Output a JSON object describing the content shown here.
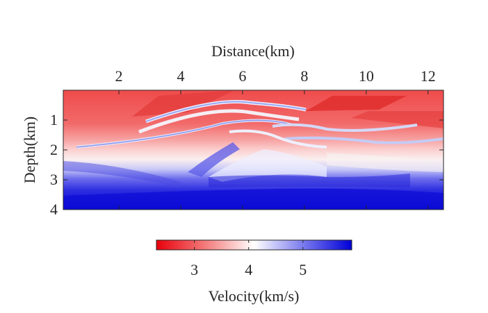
{
  "chart_data": {
    "type": "heatmap",
    "title": "",
    "xlabel": "Distance(km)",
    "ylabel": "Depth(km)",
    "xlim": [
      0.2,
      12.5
    ],
    "ylim": [
      0,
      4
    ],
    "y_axis_reversed": true,
    "x_axis_position": "top",
    "xticks": [
      2,
      4,
      6,
      8,
      10,
      12
    ],
    "xtick_labels": [
      "2",
      "4",
      "6",
      "8",
      "10",
      "12"
    ],
    "yticks": [
      1,
      2,
      3,
      4
    ],
    "ytick_labels": [
      "1",
      "2",
      "3",
      "4"
    ],
    "colorbar": {
      "label": "Velocity(km/s)",
      "orientation": "horizontal",
      "placement": "bottom",
      "range": [
        2.3,
        5.9
      ],
      "ticks": [
        3,
        4,
        5
      ],
      "tick_labels": [
        "3",
        "4",
        "5"
      ],
      "colormap": "red-white-blue",
      "colors": [
        "#e8000b",
        "#ffffff",
        "#0000d8"
      ]
    },
    "layers": [
      {
        "depth_km": 0.3,
        "velocity_kms": 2.8
      },
      {
        "depth_km": 1.0,
        "velocity_kms": 3.0
      },
      {
        "depth_km": 1.5,
        "velocity_kms": 3.4
      },
      {
        "depth_km": 2.0,
        "velocity_kms": 3.7
      },
      {
        "depth_km": 2.5,
        "velocity_kms": 4.2
      },
      {
        "depth_km": 3.0,
        "velocity_kms": 4.8
      },
      {
        "depth_km": 3.5,
        "velocity_kms": 5.4
      },
      {
        "depth_km": 4.0,
        "velocity_kms": 5.8
      }
    ]
  }
}
